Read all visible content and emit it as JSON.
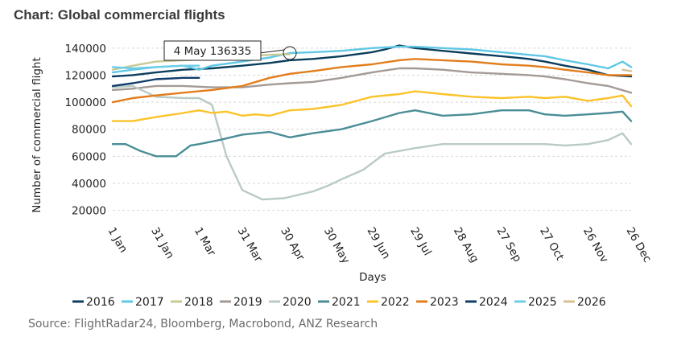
{
  "chart_data": {
    "type": "line",
    "title": "Chart: Global commercial flights",
    "xlabel": "Days",
    "ylabel": "Number of commercial flight",
    "ylim": [
      15000,
      150000
    ],
    "xlim": [
      1,
      361
    ],
    "yticks": [
      20000,
      40000,
      60000,
      80000,
      100000,
      120000,
      140000
    ],
    "ytick_labels": [
      "20000",
      "40000",
      "60000",
      "80000",
      "100000",
      "120000",
      "140000"
    ],
    "xticks": [
      {
        "day": 1,
        "label": "1 Jan"
      },
      {
        "day": 31,
        "label": "31 Jan"
      },
      {
        "day": 61,
        "label": "1 Mar"
      },
      {
        "day": 91,
        "label": "31 Mar"
      },
      {
        "day": 121,
        "label": "30 Apr"
      },
      {
        "day": 151,
        "label": "30 May"
      },
      {
        "day": 181,
        "label": "29 Jun"
      },
      {
        "day": 211,
        "label": "29 Jul"
      },
      {
        "day": 241,
        "label": "28 Aug"
      },
      {
        "day": 271,
        "label": "27 Sep"
      },
      {
        "day": 301,
        "label": "27 Oct"
      },
      {
        "day": 331,
        "label": "26 Nov"
      },
      {
        "day": 361,
        "label": "26 Dec"
      }
    ],
    "grid": "horizontal dashed",
    "legend_position": "bottom",
    "annotation": {
      "text": "4 May 136335",
      "day": 124,
      "value": 136335
    },
    "series": [
      {
        "name": "2016",
        "color": "#0b3d5c",
        "points": [
          [
            1,
            119000
          ],
          [
            15,
            120000
          ],
          [
            31,
            122000
          ],
          [
            50,
            124000
          ],
          [
            70,
            125000
          ],
          [
            91,
            127000
          ],
          [
            110,
            129000
          ],
          [
            124,
            131000
          ],
          [
            140,
            132000
          ],
          [
            160,
            134000
          ],
          [
            181,
            137000
          ],
          [
            190,
            139000
          ],
          [
            200,
            142000
          ],
          [
            211,
            140000
          ],
          [
            230,
            138000
          ],
          [
            250,
            136000
          ],
          [
            271,
            134000
          ],
          [
            290,
            132000
          ],
          [
            301,
            130000
          ],
          [
            315,
            127000
          ],
          [
            331,
            124000
          ],
          [
            345,
            120000
          ],
          [
            361,
            119000
          ]
        ]
      },
      {
        "name": "2017",
        "color": "#5ec8e5",
        "points": [
          [
            1,
            122000
          ],
          [
            15,
            124000
          ],
          [
            31,
            126000
          ],
          [
            50,
            127000
          ],
          [
            61,
            124000
          ],
          [
            70,
            127000
          ],
          [
            91,
            130000
          ],
          [
            110,
            133000
          ],
          [
            124,
            136335
          ],
          [
            140,
            137000
          ],
          [
            160,
            138000
          ],
          [
            181,
            140000
          ],
          [
            200,
            141000
          ],
          [
            211,
            141000
          ],
          [
            230,
            140000
          ],
          [
            250,
            139000
          ],
          [
            271,
            137000
          ],
          [
            290,
            135000
          ],
          [
            301,
            134000
          ],
          [
            315,
            131000
          ],
          [
            331,
            128000
          ],
          [
            345,
            125000
          ],
          [
            355,
            130000
          ],
          [
            361,
            126000
          ]
        ]
      },
      {
        "name": "2018",
        "color": "#c9c895",
        "points": [
          [
            1,
            124000
          ],
          [
            15,
            127000
          ],
          [
            31,
            130000
          ],
          [
            50,
            131000
          ],
          [
            70,
            132000
          ],
          [
            91,
            134000
          ],
          [
            110,
            135000
          ],
          [
            124,
            135500
          ]
        ]
      },
      {
        "name": "2019",
        "color": "#a49a96",
        "points": [
          [
            1,
            109000
          ],
          [
            15,
            110000
          ],
          [
            31,
            112000
          ],
          [
            50,
            112000
          ],
          [
            70,
            111000
          ],
          [
            91,
            111000
          ],
          [
            110,
            113000
          ],
          [
            124,
            114000
          ],
          [
            140,
            115000
          ],
          [
            160,
            118000
          ],
          [
            181,
            122000
          ],
          [
            200,
            125000
          ],
          [
            211,
            125000
          ],
          [
            230,
            124000
          ],
          [
            250,
            122000
          ],
          [
            271,
            121000
          ],
          [
            290,
            120000
          ],
          [
            301,
            119000
          ],
          [
            315,
            117000
          ],
          [
            331,
            114000
          ],
          [
            345,
            112000
          ],
          [
            361,
            107000
          ]
        ]
      },
      {
        "name": "2020",
        "color": "#b9cac4",
        "points": [
          [
            1,
            111000
          ],
          [
            15,
            112000
          ],
          [
            31,
            104000
          ],
          [
            50,
            103000
          ],
          [
            61,
            103000
          ],
          [
            70,
            98000
          ],
          [
            80,
            60000
          ],
          [
            91,
            35000
          ],
          [
            105,
            28000
          ],
          [
            120,
            29000
          ],
          [
            140,
            34000
          ],
          [
            150,
            38000
          ],
          [
            160,
            43000
          ],
          [
            175,
            50000
          ],
          [
            190,
            62000
          ],
          [
            211,
            66000
          ],
          [
            230,
            69000
          ],
          [
            250,
            69000
          ],
          [
            271,
            69000
          ],
          [
            290,
            69000
          ],
          [
            301,
            69000
          ],
          [
            315,
            68000
          ],
          [
            331,
            69000
          ],
          [
            345,
            72000
          ],
          [
            355,
            77000
          ],
          [
            361,
            69000
          ]
        ]
      },
      {
        "name": "2021",
        "color": "#4a8d96",
        "points": [
          [
            1,
            69000
          ],
          [
            10,
            69000
          ],
          [
            20,
            64000
          ],
          [
            31,
            60000
          ],
          [
            45,
            60000
          ],
          [
            50,
            64000
          ],
          [
            55,
            68000
          ],
          [
            61,
            69000
          ],
          [
            75,
            72000
          ],
          [
            91,
            76000
          ],
          [
            110,
            78000
          ],
          [
            124,
            74000
          ],
          [
            140,
            77000
          ],
          [
            160,
            80000
          ],
          [
            181,
            86000
          ],
          [
            200,
            92000
          ],
          [
            211,
            94000
          ],
          [
            230,
            90000
          ],
          [
            250,
            91000
          ],
          [
            271,
            94000
          ],
          [
            290,
            94000
          ],
          [
            301,
            91000
          ],
          [
            315,
            90000
          ],
          [
            331,
            91000
          ],
          [
            345,
            92000
          ],
          [
            355,
            93000
          ],
          [
            361,
            86000
          ]
        ]
      },
      {
        "name": "2022",
        "color": "#fbc32a",
        "points": [
          [
            1,
            86000
          ],
          [
            15,
            86000
          ],
          [
            31,
            89000
          ],
          [
            50,
            92000
          ],
          [
            61,
            94000
          ],
          [
            70,
            92000
          ],
          [
            80,
            93000
          ],
          [
            91,
            90000
          ],
          [
            100,
            91000
          ],
          [
            110,
            90000
          ],
          [
            124,
            94000
          ],
          [
            140,
            95000
          ],
          [
            160,
            98000
          ],
          [
            181,
            104000
          ],
          [
            200,
            106000
          ],
          [
            211,
            108000
          ],
          [
            230,
            106000
          ],
          [
            250,
            104000
          ],
          [
            271,
            103000
          ],
          [
            290,
            104000
          ],
          [
            301,
            103000
          ],
          [
            315,
            104000
          ],
          [
            331,
            101000
          ],
          [
            345,
            103000
          ],
          [
            355,
            105000
          ],
          [
            361,
            97000
          ]
        ]
      },
      {
        "name": "2023",
        "color": "#e27d1b",
        "points": [
          [
            1,
            100000
          ],
          [
            15,
            103000
          ],
          [
            31,
            105000
          ],
          [
            50,
            107000
          ],
          [
            70,
            109000
          ],
          [
            91,
            112000
          ],
          [
            110,
            118000
          ],
          [
            124,
            121000
          ],
          [
            140,
            123000
          ],
          [
            160,
            126000
          ],
          [
            181,
            128000
          ],
          [
            200,
            131000
          ],
          [
            211,
            132000
          ],
          [
            230,
            131000
          ],
          [
            250,
            130000
          ],
          [
            271,
            128000
          ],
          [
            290,
            127000
          ],
          [
            301,
            126000
          ],
          [
            315,
            124000
          ],
          [
            331,
            122000
          ],
          [
            345,
            120000
          ],
          [
            361,
            120000
          ]
        ]
      },
      {
        "name": "2024",
        "color": "#123c6b",
        "points": [
          [
            1,
            112000
          ],
          [
            15,
            114000
          ],
          [
            31,
            117000
          ],
          [
            50,
            118000
          ],
          [
            61,
            118000
          ]
        ]
      },
      {
        "name": "2025",
        "color": "#6ccde8",
        "points": [
          [
            1,
            126000
          ],
          [
            15,
            125000
          ],
          [
            31,
            126000
          ],
          [
            50,
            127000
          ],
          [
            61,
            127000
          ]
        ]
      },
      {
        "name": "2026",
        "color": "#d4c290",
        "points": [
          [
            355,
            124000
          ],
          [
            361,
            123000
          ]
        ]
      }
    ]
  },
  "footer": {
    "source": "Source: FlightRadar24, Bloomberg, Macrobond, ANZ Research"
  }
}
